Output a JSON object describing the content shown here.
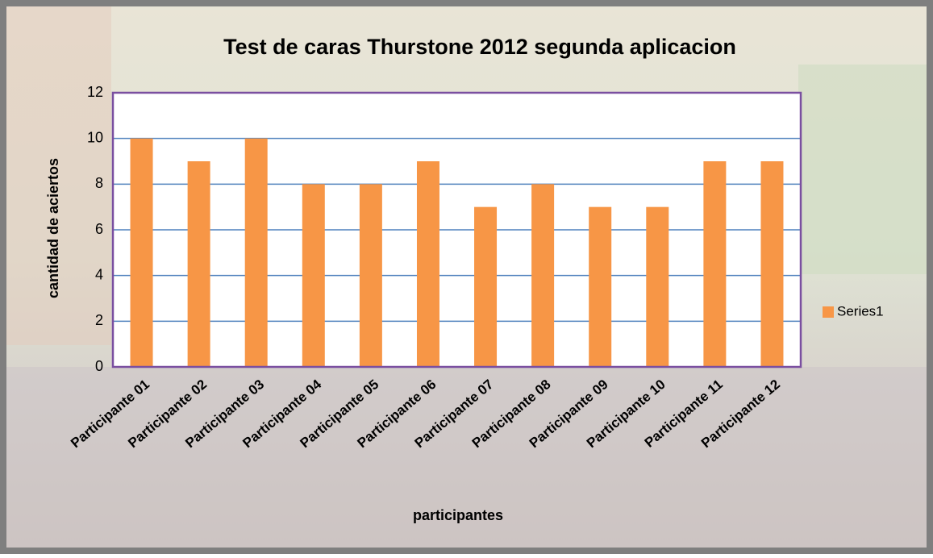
{
  "chart_data": {
    "type": "bar",
    "title": "Test de caras Thurstone 2012 segunda aplicacion",
    "x_label": "participantes",
    "y_label": "cantidad de aciertos",
    "categories": [
      "Participante 01",
      "Participante 02",
      "Participante 03",
      "Participante 04",
      "Participante 05",
      "Participante 06",
      "Participante 07",
      "Participante 08",
      "Participante 09",
      "Participante 10",
      "Participante 11",
      "Participante 12"
    ],
    "series": [
      {
        "name": "Series1",
        "color": "#f79646",
        "values": [
          10,
          9,
          10,
          8,
          8,
          9,
          7,
          8,
          7,
          7,
          9,
          9
        ]
      }
    ],
    "ylim": [
      0,
      12
    ],
    "yticks": [
      0,
      2,
      4,
      6,
      8,
      10,
      12
    ],
    "grid": true,
    "legend": "right"
  }
}
